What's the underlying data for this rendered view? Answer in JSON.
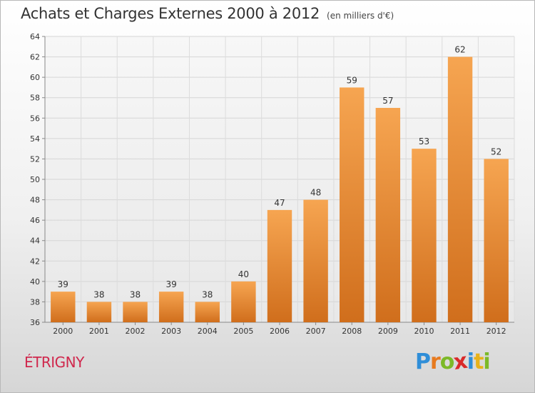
{
  "header": {
    "title": "Achats et Charges Externes 2000 à 2012",
    "unit": "(en milliers d'€)"
  },
  "location": {
    "name": "ÉTRIGNY"
  },
  "brand": {
    "letters": [
      "P",
      "r",
      "o",
      "x",
      "i",
      "t",
      "i"
    ],
    "colors": [
      "#2f8ed8",
      "#e77a1f",
      "#7cb928",
      "#d92a2a",
      "#2f8ed8",
      "#e8b21a",
      "#7cb928"
    ]
  },
  "colors": {
    "bar_top": "#f6a551",
    "bar_bottom": "#d06e1c"
  },
  "chart_data": {
    "type": "bar",
    "categories": [
      "2000",
      "2001",
      "2002",
      "2003",
      "2004",
      "2005",
      "2006",
      "2007",
      "2008",
      "2009",
      "2010",
      "2011",
      "2012"
    ],
    "values": [
      39,
      38,
      38,
      39,
      38,
      40,
      47,
      48,
      59,
      57,
      53,
      62,
      52
    ],
    "title": "Achats et Charges Externes 2000 à 2012",
    "xlabel": "",
    "ylabel": "",
    "ylim": [
      36,
      64
    ],
    "yticks": [
      36,
      38,
      40,
      42,
      44,
      46,
      48,
      50,
      52,
      54,
      56,
      58,
      60,
      62,
      64
    ],
    "grid": true,
    "data_labels": true
  }
}
